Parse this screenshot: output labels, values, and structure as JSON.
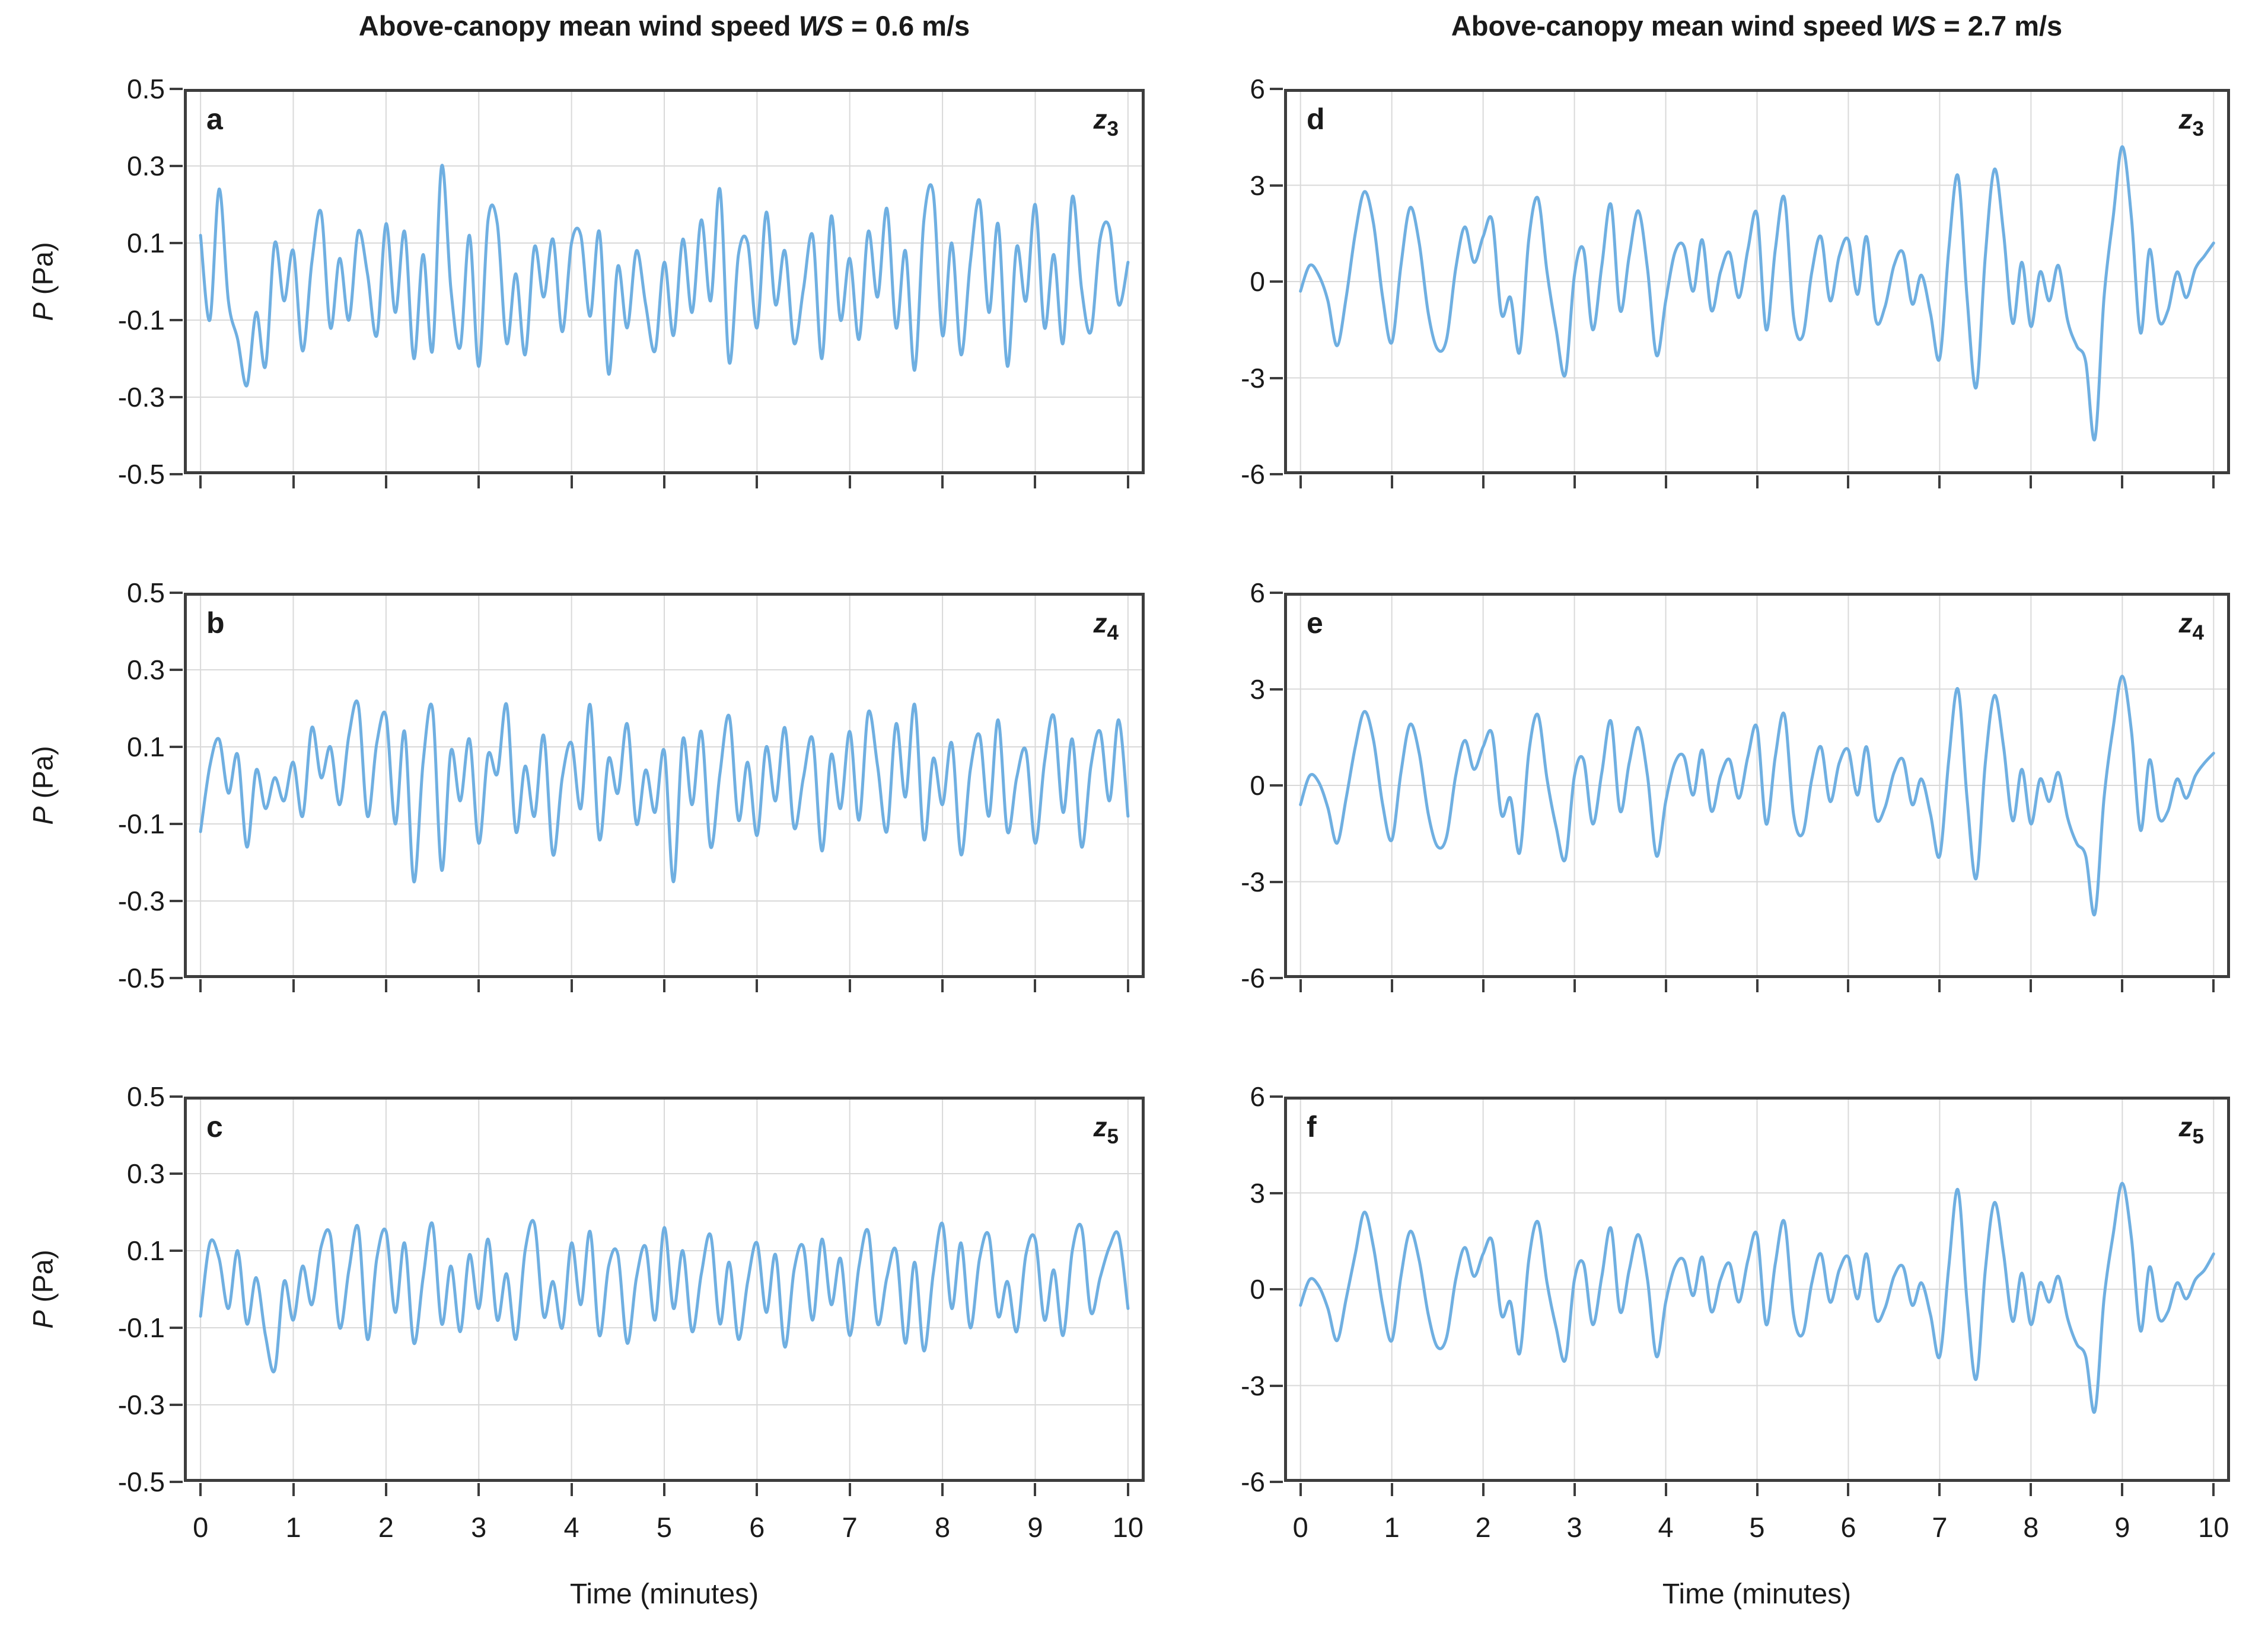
{
  "figure": {
    "background": "#ffffff",
    "line_color": "#6FAFE1",
    "grid_color": "#D9D9D9",
    "frame_color": "#3D3D3D",
    "text_color": "#1A1A1A",
    "xlabel": "Time (minutes)",
    "ylabel_var": "P",
    "ylabel_unit": " (Pa)",
    "x_ticks": [
      0,
      1,
      2,
      3,
      4,
      5,
      6,
      7,
      8,
      9,
      10
    ],
    "columns": [
      {
        "title_prefix": "Above-canopy mean wind speed ",
        "title_var": "WS",
        "title_suffix": " = 0.6 m/s"
      },
      {
        "title_prefix": "Above-canopy mean wind speed ",
        "title_var": "WS",
        "title_suffix": " = 2.7 m/s"
      }
    ]
  },
  "chart_data": [
    {
      "type": "line",
      "panel_label": "a",
      "z_base": "z",
      "z_sub": "3",
      "col": 0,
      "row": 0,
      "ylim": [
        -0.5,
        0.5
      ],
      "y_ticks": [
        "0.5",
        "0.3",
        "0.1",
        "-0.1",
        "-0.3",
        "-0.5"
      ],
      "y_tick_vals": [
        0.5,
        0.3,
        0.1,
        -0.1,
        -0.3,
        -0.5
      ],
      "grid_y": [
        0.3,
        0.1,
        -0.1,
        -0.3
      ],
      "xlim_pad": 0.18,
      "t_start": 0,
      "t_step": 0.1,
      "show_x_labels": false,
      "show_ylabel": true,
      "values": [
        0.12,
        -0.1,
        0.24,
        -0.05,
        -0.15,
        -0.27,
        -0.08,
        -0.22,
        0.1,
        -0.05,
        0.08,
        -0.18,
        0.05,
        0.18,
        -0.12,
        0.06,
        -0.1,
        0.13,
        0.02,
        -0.14,
        0.15,
        -0.08,
        0.13,
        -0.2,
        0.07,
        -0.18,
        0.3,
        -0.02,
        -0.17,
        0.12,
        -0.22,
        0.16,
        0.15,
        -0.16,
        0.02,
        -0.19,
        0.09,
        -0.04,
        0.11,
        -0.13,
        0.1,
        0.12,
        -0.09,
        0.13,
        -0.24,
        0.04,
        -0.12,
        0.08,
        -0.06,
        -0.18,
        0.05,
        -0.14,
        0.11,
        -0.08,
        0.16,
        -0.05,
        0.24,
        -0.21,
        0.07,
        0.1,
        -0.12,
        0.18,
        -0.06,
        0.08,
        -0.16,
        -0.02,
        0.12,
        -0.2,
        0.17,
        -0.1,
        0.06,
        -0.15,
        0.13,
        -0.04,
        0.19,
        -0.12,
        0.08,
        -0.23,
        0.16,
        0.23,
        -0.14,
        0.1,
        -0.19,
        0.05,
        0.21,
        -0.08,
        0.15,
        -0.22,
        0.09,
        -0.05,
        0.2,
        -0.12,
        0.07,
        -0.16,
        0.22,
        -0.02,
        -0.13,
        0.11,
        0.14,
        -0.06,
        0.05
      ]
    },
    {
      "type": "line",
      "panel_label": "b",
      "z_base": "z",
      "z_sub": "4",
      "col": 0,
      "row": 1,
      "ylim": [
        -0.5,
        0.5
      ],
      "y_ticks": [
        "0.5",
        "0.3",
        "0.1",
        "-0.1",
        "-0.3",
        "-0.5"
      ],
      "y_tick_vals": [
        0.5,
        0.3,
        0.1,
        -0.1,
        -0.3,
        -0.5
      ],
      "grid_y": [
        0.3,
        0.1,
        -0.1,
        -0.3
      ],
      "xlim_pad": 0.18,
      "t_start": 0,
      "t_step": 0.1,
      "show_x_labels": false,
      "show_ylabel": true,
      "values": [
        -0.12,
        0.05,
        0.12,
        -0.02,
        0.08,
        -0.16,
        0.04,
        -0.06,
        0.02,
        -0.04,
        0.06,
        -0.08,
        0.15,
        0.02,
        0.1,
        -0.05,
        0.13,
        0.21,
        -0.08,
        0.11,
        0.18,
        -0.1,
        0.14,
        -0.25,
        0.06,
        0.2,
        -0.22,
        0.09,
        -0.04,
        0.12,
        -0.15,
        0.08,
        0.03,
        0.21,
        -0.12,
        0.05,
        -0.08,
        0.13,
        -0.18,
        0.02,
        0.11,
        -0.06,
        0.21,
        -0.14,
        0.07,
        -0.02,
        0.16,
        -0.1,
        0.04,
        -0.07,
        0.09,
        -0.25,
        0.12,
        -0.05,
        0.14,
        -0.16,
        0.03,
        0.18,
        -0.09,
        0.06,
        -0.13,
        0.1,
        -0.04,
        0.15,
        -0.11,
        0.02,
        0.12,
        -0.17,
        0.08,
        -0.06,
        0.14,
        -0.09,
        0.19,
        0.05,
        -0.12,
        0.16,
        -0.03,
        0.21,
        -0.14,
        0.07,
        -0.05,
        0.11,
        -0.18,
        0.04,
        0.13,
        -0.08,
        0.17,
        -0.12,
        0.02,
        0.09,
        -0.15,
        0.06,
        0.18,
        -0.07,
        0.12,
        -0.16,
        0.05,
        0.14,
        -0.04,
        0.17,
        -0.08
      ]
    },
    {
      "type": "line",
      "panel_label": "c",
      "z_base": "z",
      "z_sub": "5",
      "col": 0,
      "row": 2,
      "ylim": [
        -0.5,
        0.5
      ],
      "y_ticks": [
        "0.5",
        "0.3",
        "0.1",
        "-0.1",
        "-0.3",
        "-0.5"
      ],
      "y_tick_vals": [
        0.5,
        0.3,
        0.1,
        -0.1,
        -0.3,
        -0.5
      ],
      "grid_y": [
        0.3,
        0.1,
        -0.1,
        -0.3
      ],
      "xlim_pad": 0.18,
      "t_start": 0,
      "t_step": 0.1,
      "show_x_labels": true,
      "show_ylabel": true,
      "values": [
        -0.07,
        0.12,
        0.08,
        -0.05,
        0.1,
        -0.09,
        0.03,
        -0.12,
        -0.21,
        0.02,
        -0.08,
        0.06,
        -0.04,
        0.11,
        0.14,
        -0.1,
        0.05,
        0.16,
        -0.13,
        0.08,
        0.15,
        -0.06,
        0.12,
        -0.14,
        0.03,
        0.17,
        -0.09,
        0.06,
        -0.11,
        0.09,
        -0.05,
        0.13,
        -0.08,
        0.04,
        -0.13,
        0.1,
        0.17,
        -0.07,
        0.02,
        -0.1,
        0.12,
        -0.04,
        0.15,
        -0.12,
        0.06,
        0.09,
        -0.14,
        0.03,
        0.11,
        -0.08,
        0.16,
        -0.05,
        0.1,
        -0.11,
        0.04,
        0.14,
        -0.09,
        0.07,
        -0.13,
        0.02,
        0.12,
        -0.06,
        0.09,
        -0.15,
        0.05,
        0.11,
        -0.08,
        0.13,
        -0.04,
        0.08,
        -0.12,
        0.06,
        0.15,
        -0.09,
        0.03,
        0.1,
        -0.14,
        0.07,
        -0.16,
        0.04,
        0.17,
        -0.05,
        0.12,
        -0.1,
        0.08,
        0.14,
        -0.07,
        0.02,
        -0.11,
        0.09,
        0.13,
        -0.08,
        0.05,
        -0.12,
        0.1,
        0.16,
        -0.06,
        0.03,
        0.11,
        0.14,
        -0.05
      ]
    },
    {
      "type": "line",
      "panel_label": "d",
      "z_base": "z",
      "z_sub": "3",
      "col": 1,
      "row": 0,
      "ylim": [
        -6,
        6
      ],
      "y_ticks": [
        "6",
        "3",
        "0",
        "-3",
        "-6"
      ],
      "y_tick_vals": [
        6,
        3,
        0,
        -3,
        -6
      ],
      "grid_y": [
        3,
        0,
        -3
      ],
      "xlim_pad": 0.18,
      "t_start": 0,
      "t_step": 0.1,
      "show_x_labels": false,
      "show_ylabel": false,
      "values": [
        -0.3,
        0.5,
        0.2,
        -0.6,
        -2.0,
        -0.5,
        1.5,
        2.8,
        1.8,
        -0.5,
        -1.9,
        0.5,
        2.3,
        1.2,
        -1.0,
        -2.1,
        -1.8,
        0.4,
        1.7,
        0.6,
        1.4,
        1.9,
        -1.0,
        -0.5,
        -2.2,
        1.3,
        2.6,
        0.3,
        -1.5,
        -2.9,
        0.2,
        1.0,
        -1.5,
        0.5,
        2.4,
        -0.9,
        0.8,
        2.2,
        0.4,
        -2.3,
        -0.6,
        0.9,
        1.1,
        -0.3,
        1.3,
        -0.9,
        0.3,
        0.9,
        -0.5,
        1.0,
        2.1,
        -1.5,
        1.0,
        2.6,
        -1.1,
        -1.7,
        0.3,
        1.4,
        -0.6,
        0.8,
        1.3,
        -0.4,
        1.4,
        -1.2,
        -0.8,
        0.5,
        0.9,
        -0.7,
        0.2,
        -1.0,
        -2.4,
        1.0,
        3.3,
        -0.5,
        -3.3,
        0.8,
        3.5,
        1.5,
        -1.3,
        0.6,
        -1.4,
        0.3,
        -0.6,
        0.5,
        -1.2,
        -2.0,
        -2.5,
        -4.9,
        -0.5,
        2.0,
        4.2,
        2.0,
        -1.6,
        1.0,
        -1.2,
        -0.9,
        0.3,
        -0.5,
        0.4,
        0.8,
        1.2
      ]
    },
    {
      "type": "line",
      "panel_label": "e",
      "z_base": "z",
      "z_sub": "4",
      "col": 1,
      "row": 1,
      "ylim": [
        -6,
        6
      ],
      "y_ticks": [
        "6",
        "3",
        "0",
        "-3",
        "-6"
      ],
      "y_tick_vals": [
        6,
        3,
        0,
        -3,
        -6
      ],
      "grid_y": [
        3,
        0,
        -3
      ],
      "xlim_pad": 0.18,
      "t_start": 0,
      "t_step": 0.1,
      "show_x_labels": false,
      "show_ylabel": false,
      "values": [
        -0.6,
        0.3,
        0.1,
        -0.7,
        -1.8,
        -0.4,
        1.2,
        2.3,
        1.4,
        -0.6,
        -1.7,
        0.4,
        1.9,
        1.0,
        -0.9,
        -1.9,
        -1.6,
        0.3,
        1.4,
        0.5,
        1.2,
        1.6,
        -0.9,
        -0.4,
        -2.1,
        1.0,
        2.2,
        0.2,
        -1.3,
        -2.3,
        0.3,
        0.8,
        -1.2,
        0.4,
        2.0,
        -0.8,
        0.7,
        1.8,
        0.3,
        -2.2,
        -0.5,
        0.7,
        0.9,
        -0.3,
        1.1,
        -0.8,
        0.3,
        0.8,
        -0.4,
        0.9,
        1.8,
        -1.2,
        0.9,
        2.2,
        -0.9,
        -1.5,
        0.2,
        1.2,
        -0.5,
        0.7,
        1.1,
        -0.3,
        1.2,
        -1.0,
        -0.7,
        0.4,
        0.8,
        -0.6,
        0.2,
        -0.9,
        -2.2,
        0.8,
        3.0,
        -0.4,
        -2.9,
        0.7,
        2.8,
        1.2,
        -1.1,
        0.5,
        -1.2,
        0.2,
        -0.5,
        0.4,
        -1.0,
        -1.8,
        -2.2,
        -4.0,
        -0.4,
        1.8,
        3.4,
        1.7,
        -1.4,
        0.8,
        -1.0,
        -0.8,
        0.2,
        -0.4,
        0.3,
        0.7,
        1.0
      ]
    },
    {
      "type": "line",
      "panel_label": "f",
      "z_base": "z",
      "z_sub": "5",
      "col": 1,
      "row": 2,
      "ylim": [
        -6,
        6
      ],
      "y_ticks": [
        "6",
        "3",
        "0",
        "-3",
        "-6"
      ],
      "y_tick_vals": [
        6,
        3,
        0,
        -3,
        -6
      ],
      "grid_y": [
        3,
        0,
        -3
      ],
      "xlim_pad": 0.18,
      "t_start": 0,
      "t_step": 0.1,
      "show_x_labels": true,
      "show_ylabel": false,
      "values": [
        -0.5,
        0.3,
        0.1,
        -0.6,
        -1.6,
        -0.3,
        1.1,
        2.4,
        1.3,
        -0.5,
        -1.6,
        0.4,
        1.8,
        0.9,
        -0.8,
        -1.8,
        -1.5,
        0.3,
        1.3,
        0.4,
        1.1,
        1.5,
        -0.8,
        -0.4,
        -2.0,
        0.9,
        2.1,
        0.2,
        -1.2,
        -2.2,
        0.3,
        0.8,
        -1.1,
        0.4,
        1.9,
        -0.7,
        0.6,
        1.7,
        0.3,
        -2.1,
        -0.4,
        0.7,
        0.9,
        -0.2,
        1.0,
        -0.7,
        0.3,
        0.8,
        -0.4,
        0.9,
        1.7,
        -1.1,
        0.8,
        2.1,
        -0.8,
        -1.4,
        0.2,
        1.1,
        -0.4,
        0.6,
        1.0,
        -0.3,
        1.1,
        -0.9,
        -0.6,
        0.4,
        0.7,
        -0.5,
        0.2,
        -0.8,
        -2.1,
        0.7,
        3.1,
        -0.4,
        -2.8,
        0.6,
        2.7,
        1.1,
        -1.0,
        0.5,
        -1.1,
        0.2,
        -0.4,
        0.4,
        -0.9,
        -1.7,
        -2.1,
        -3.8,
        -0.3,
        1.7,
        3.3,
        1.6,
        -1.3,
        0.7,
        -0.9,
        -0.7,
        0.2,
        -0.3,
        0.3,
        0.6,
        1.1
      ]
    }
  ]
}
